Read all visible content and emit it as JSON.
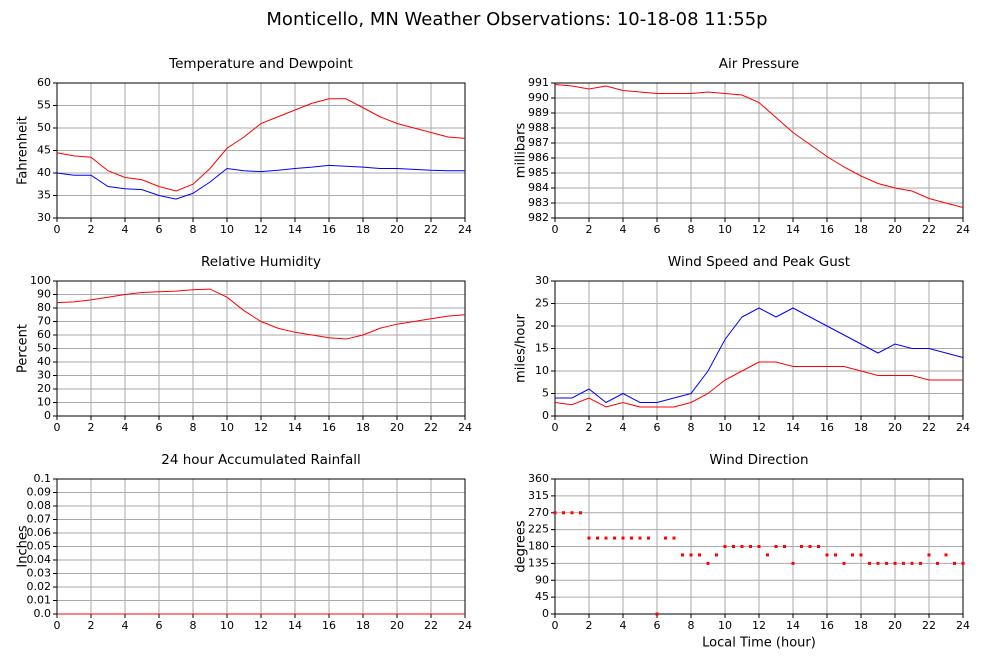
{
  "title": "Monticello, MN Weather Observations: 10-18-08 11:55p",
  "chart_data": [
    {
      "type": "line",
      "title": "Temperature and Dewpoint",
      "ylabel": "Fahrenheit",
      "x": [
        0,
        1,
        2,
        3,
        4,
        5,
        6,
        7,
        8,
        9,
        10,
        11,
        12,
        13,
        14,
        15,
        16,
        17,
        18,
        19,
        20,
        21,
        22,
        23,
        24
      ],
      "xlim": [
        0,
        24
      ],
      "xticks": [
        0,
        2,
        4,
        6,
        8,
        10,
        12,
        14,
        16,
        18,
        20,
        22,
        24
      ],
      "ylim": [
        30,
        60
      ],
      "yticks": [
        30,
        35,
        40,
        45,
        50,
        55,
        60
      ],
      "grid": true,
      "series": [
        {
          "color": "#ff0000",
          "values": [
            44.5,
            43.8,
            43.5,
            40.5,
            39,
            38.5,
            37,
            36,
            37.5,
            41,
            45.5,
            48,
            51,
            52.5,
            54,
            55.5,
            56.5,
            56.5,
            54.5,
            52.5,
            51,
            50,
            49,
            48,
            47.7
          ]
        },
        {
          "color": "#0000ff",
          "values": [
            40,
            39.5,
            39.5,
            37,
            36.5,
            36.3,
            35,
            34.2,
            35.5,
            38,
            41,
            40.5,
            40.3,
            40.6,
            41,
            41.3,
            41.7,
            41.5,
            41.3,
            41,
            41,
            40.8,
            40.6,
            40.5,
            40.5
          ]
        }
      ]
    },
    {
      "type": "line",
      "title": "Air Pressure",
      "ylabel": "millibars",
      "x": [
        0,
        1,
        2,
        3,
        4,
        5,
        6,
        7,
        8,
        9,
        10,
        11,
        12,
        13,
        14,
        15,
        16,
        17,
        18,
        19,
        20,
        21,
        22,
        23,
        24
      ],
      "xlim": [
        0,
        24
      ],
      "xticks": [
        0,
        2,
        4,
        6,
        8,
        10,
        12,
        14,
        16,
        18,
        20,
        22,
        24
      ],
      "ylim": [
        982,
        991
      ],
      "yticks": [
        982,
        983,
        984,
        985,
        986,
        987,
        988,
        989,
        990,
        991
      ],
      "grid": true,
      "series": [
        {
          "color": "#ff0000",
          "values": [
            990.9,
            990.8,
            990.6,
            990.8,
            990.5,
            990.4,
            990.3,
            990.3,
            990.3,
            990.4,
            990.3,
            990.2,
            989.7,
            988.7,
            987.7,
            986.9,
            986.1,
            985.4,
            984.8,
            984.3,
            984.0,
            983.8,
            983.3,
            983.0,
            982.7
          ]
        }
      ]
    },
    {
      "type": "line",
      "title": "Relative Humidity",
      "ylabel": "Percent",
      "x": [
        0,
        1,
        2,
        3,
        4,
        5,
        6,
        7,
        8,
        9,
        10,
        11,
        12,
        13,
        14,
        15,
        16,
        17,
        18,
        19,
        20,
        21,
        22,
        23,
        24
      ],
      "xlim": [
        0,
        24
      ],
      "xticks": [
        0,
        2,
        4,
        6,
        8,
        10,
        12,
        14,
        16,
        18,
        20,
        22,
        24
      ],
      "ylim": [
        0,
        100
      ],
      "yticks": [
        0,
        10,
        20,
        30,
        40,
        50,
        60,
        70,
        80,
        90,
        100
      ],
      "grid": true,
      "series": [
        {
          "color": "#ff0000",
          "values": [
            84,
            84.5,
            86,
            88,
            90,
            91.5,
            92,
            92.5,
            93.5,
            94,
            88,
            78,
            70,
            65,
            62,
            60,
            58,
            57,
            60,
            65,
            68,
            70,
            72,
            74,
            75
          ]
        }
      ]
    },
    {
      "type": "line",
      "title": "Wind Speed and Peak Gust",
      "ylabel": "miles/hour",
      "x": [
        0,
        1,
        2,
        3,
        4,
        5,
        6,
        7,
        8,
        9,
        10,
        11,
        12,
        13,
        14,
        15,
        16,
        17,
        18,
        19,
        20,
        21,
        22,
        23,
        24
      ],
      "xlim": [
        0,
        24
      ],
      "xticks": [
        0,
        2,
        4,
        6,
        8,
        10,
        12,
        14,
        16,
        18,
        20,
        22,
        24
      ],
      "ylim": [
        0,
        30
      ],
      "yticks": [
        0,
        5,
        10,
        15,
        20,
        25,
        30
      ],
      "grid": true,
      "series": [
        {
          "color": "#0000ff",
          "values": [
            4,
            4,
            6,
            3,
            5,
            3,
            3,
            4,
            5,
            10,
            17,
            22,
            24,
            22,
            24,
            22,
            20,
            18,
            16,
            14,
            16,
            15,
            15,
            14,
            13
          ]
        },
        {
          "color": "#ff0000",
          "values": [
            3,
            2.5,
            4,
            2,
            3,
            2,
            2,
            2,
            3,
            5,
            8,
            10,
            12,
            12,
            11,
            11,
            11,
            11,
            10,
            9,
            9,
            9,
            8,
            8,
            8
          ]
        }
      ]
    },
    {
      "type": "line",
      "title": "24 hour Accumulated Rainfall",
      "ylabel": "Inches",
      "x": [
        0,
        1,
        2,
        3,
        4,
        5,
        6,
        7,
        8,
        9,
        10,
        11,
        12,
        13,
        14,
        15,
        16,
        17,
        18,
        19,
        20,
        21,
        22,
        23,
        24
      ],
      "xlim": [
        0,
        24
      ],
      "xticks": [
        0,
        2,
        4,
        6,
        8,
        10,
        12,
        14,
        16,
        18,
        20,
        22,
        24
      ],
      "ylim": [
        0,
        0.1
      ],
      "yticks": [
        {
          "value": 0,
          "label": "0.0"
        },
        0.01,
        0.02,
        0.03,
        0.04,
        0.05,
        0.06,
        0.07,
        0.08,
        0.09,
        0.1
      ],
      "grid": true,
      "series": [
        {
          "color": "#ff0000",
          "values": [
            0,
            0,
            0,
            0,
            0,
            0,
            0,
            0,
            0,
            0,
            0,
            0,
            0,
            0,
            0,
            0,
            0,
            0,
            0,
            0,
            0,
            0,
            0,
            0,
            0
          ]
        }
      ]
    },
    {
      "type": "scatter",
      "title": "Wind Direction",
      "ylabel": "degrees",
      "xlabel": "Local Time (hour)",
      "x": [
        0,
        0.5,
        1,
        1.5,
        2,
        2.5,
        3,
        3.5,
        4,
        4.5,
        5,
        5.5,
        6,
        6.5,
        7,
        7.5,
        8,
        8.5,
        9,
        9.5,
        10,
        10.5,
        11,
        11.5,
        12,
        12.5,
        13,
        13.5,
        14,
        14.5,
        15,
        15.5,
        16,
        16.5,
        17,
        17.5,
        18,
        18.5,
        19,
        19.5,
        20,
        20.5,
        21,
        21.5,
        22,
        22.5,
        23,
        23.5,
        24
      ],
      "xlim": [
        0,
        24
      ],
      "xticks": [
        0,
        2,
        4,
        6,
        8,
        10,
        12,
        14,
        16,
        18,
        20,
        22,
        24
      ],
      "ylim": [
        0,
        360
      ],
      "yticks": [
        0,
        45,
        90,
        135,
        180,
        225,
        270,
        315,
        360
      ],
      "grid": true,
      "series": [
        {
          "color": "#ff0000",
          "values": [
            270,
            270,
            270,
            270,
            202.5,
            202.5,
            202.5,
            202.5,
            202.5,
            202.5,
            202.5,
            202.5,
            0,
            202.5,
            202.5,
            157.5,
            157.5,
            157.5,
            135,
            157.5,
            180,
            180,
            180,
            180,
            180,
            157.5,
            180,
            180,
            135,
            180,
            180,
            180,
            157.5,
            157.5,
            135,
            157.5,
            157.5,
            135,
            135,
            135,
            135,
            135,
            135,
            135,
            157.5,
            135,
            157.5,
            135,
            135
          ]
        }
      ]
    }
  ]
}
